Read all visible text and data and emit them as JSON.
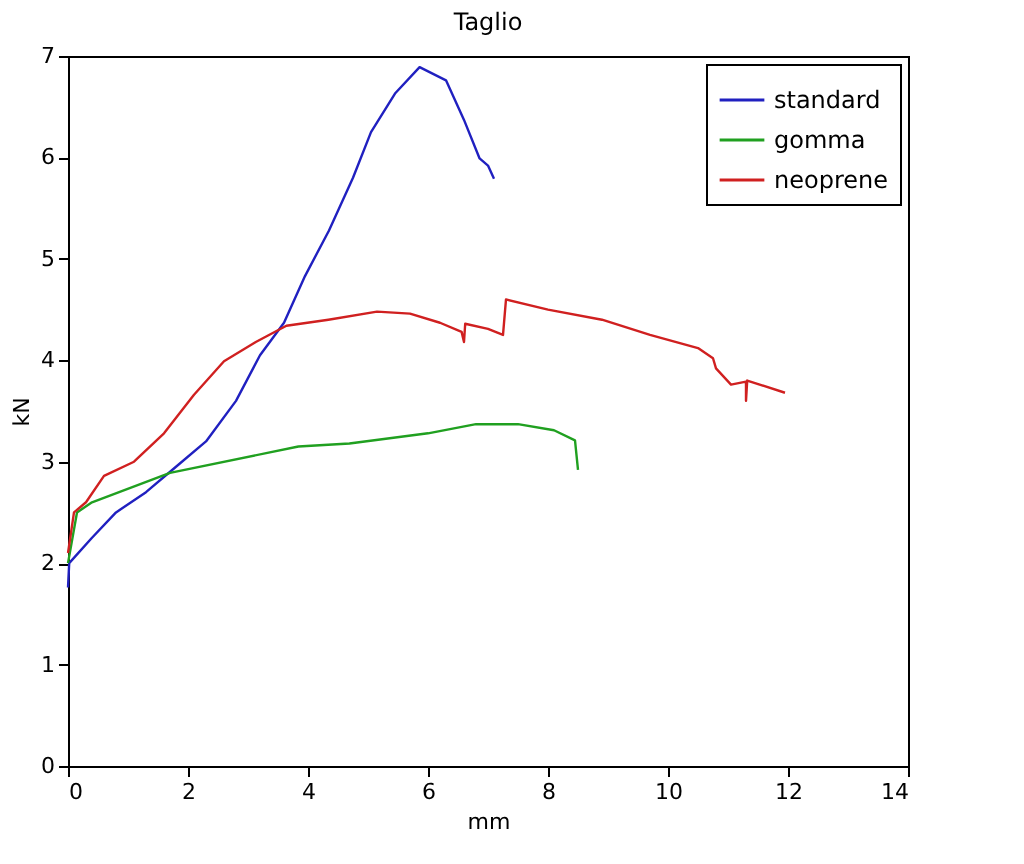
{
  "chart_data": {
    "type": "line",
    "title": "Taglio",
    "xlabel": "mm",
    "ylabel": "kN",
    "xlim": [
      0,
      14
    ],
    "ylim": [
      0,
      7
    ],
    "xticks": [
      0,
      2,
      4,
      6,
      8,
      10,
      12,
      14
    ],
    "yticks": [
      0,
      1,
      2,
      3,
      4,
      5,
      6,
      7
    ],
    "grid": false,
    "legend": "top right",
    "marker": "none",
    "line_style": "solid",
    "series": [
      {
        "name": "standard",
        "color": "#2020c0",
        "x": [
          0,
          0.02,
          0.4,
          0.8,
          1.3,
          1.8,
          2.3,
          2.8,
          3.2,
          3.6,
          3.95,
          4.35,
          4.75,
          5.05,
          5.45,
          5.86,
          6.3,
          6.6,
          6.86,
          7.0,
          7.1
        ],
        "values": [
          1.76,
          2.0,
          2.25,
          2.5,
          2.7,
          2.95,
          3.2,
          3.6,
          4.05,
          4.37,
          4.83,
          5.28,
          5.8,
          6.25,
          6.63,
          6.89,
          6.76,
          6.37,
          5.99,
          5.92,
          5.79
        ]
      },
      {
        "name": "gomma",
        "color": "#20a020",
        "x": [
          0,
          0.15,
          0.4,
          1.7,
          3.84,
          4.69,
          6.0,
          6.8,
          7.5,
          8.1,
          8.45,
          8.5
        ],
        "values": [
          2.0,
          2.5,
          2.6,
          2.89,
          3.15,
          3.18,
          3.28,
          3.37,
          3.37,
          3.31,
          3.21,
          2.92
        ]
      },
      {
        "name": "neoprene",
        "color": "#d02020",
        "x": [
          0,
          0.1,
          0.3,
          0.6,
          1.1,
          1.6,
          2.1,
          2.6,
          3.13,
          3.64,
          4.34,
          5.15,
          5.7,
          6.2,
          6.56,
          6.6,
          6.62,
          7.0,
          7.25,
          7.3,
          8.0,
          8.9,
          9.7,
          10.5,
          10.75,
          10.8,
          11.05,
          11.3,
          11.3,
          11.32,
          11.95
        ],
        "values": [
          2.1,
          2.5,
          2.6,
          2.86,
          3.0,
          3.28,
          3.66,
          3.99,
          4.18,
          4.34,
          4.4,
          4.48,
          4.46,
          4.37,
          4.28,
          4.18,
          4.36,
          4.31,
          4.25,
          4.6,
          4.5,
          4.4,
          4.25,
          4.12,
          4.02,
          3.92,
          3.76,
          3.79,
          3.6,
          3.8,
          3.68
        ]
      }
    ]
  }
}
